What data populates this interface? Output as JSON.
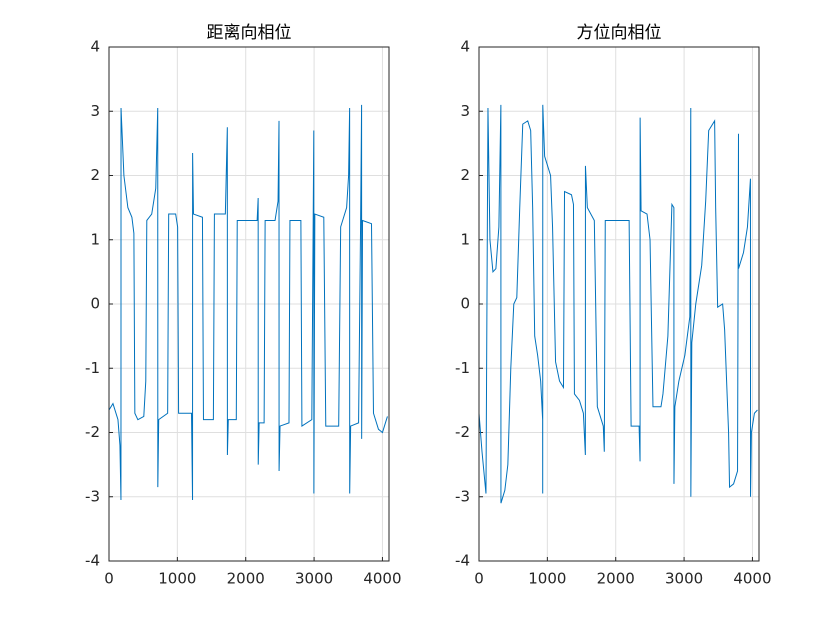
{
  "chart_data": [
    {
      "type": "line",
      "title": "距离向相位",
      "color": "#0072BD",
      "grid": true,
      "xlim": [
        0,
        4096
      ],
      "xticks": [
        0,
        1000,
        2000,
        3000,
        4000
      ],
      "ylim": [
        -4,
        4
      ],
      "yticks": [
        -4,
        -3,
        -2,
        -1,
        0,
        1,
        2,
        3,
        4
      ],
      "x": [
        0,
        58,
        131,
        160,
        175,
        176,
        218,
        276,
        335,
        364,
        378,
        422,
        509,
        538,
        553,
        625,
        684,
        713,
        714,
        727,
        858,
        873,
        975,
        1004,
        1018,
        1207,
        1222,
        1223,
        1236,
        1367,
        1382,
        1527,
        1542,
        1702,
        1731,
        1732,
        1745,
        1862,
        1876,
        2167,
        2182,
        2183,
        2196,
        2269,
        2284,
        2429,
        2473,
        2487,
        2488,
        2502,
        2633,
        2647,
        2807,
        2822,
        2967,
        2996,
        2997,
        3011,
        3142,
        3171,
        3360,
        3389,
        3476,
        3505,
        3520,
        3521,
        3535,
        3651,
        3680,
        3695,
        3696,
        3709,
        3840,
        3869,
        3942,
        4000,
        4073
      ],
      "values": [
        -1.65,
        -1.55,
        -1.8,
        -2.2,
        -3.05,
        3.05,
        2.0,
        1.5,
        1.35,
        1.1,
        -1.7,
        -1.8,
        -1.75,
        -1.2,
        1.3,
        1.4,
        1.8,
        3.05,
        -2.85,
        -1.8,
        -1.7,
        1.4,
        1.4,
        1.2,
        -1.7,
        -1.7,
        -3.05,
        2.35,
        1.4,
        1.35,
        -1.8,
        -1.8,
        1.4,
        1.4,
        2.75,
        -2.35,
        -1.8,
        -1.8,
        1.3,
        1.3,
        1.65,
        -2.5,
        -1.85,
        -1.85,
        1.3,
        1.3,
        1.6,
        2.85,
        -2.6,
        -1.9,
        -1.85,
        1.3,
        1.3,
        -1.9,
        -1.8,
        2.7,
        -2.95,
        1.4,
        1.35,
        -1.9,
        -1.9,
        1.2,
        1.5,
        2.0,
        3.05,
        -2.95,
        -1.9,
        -1.85,
        1.2,
        3.1,
        -2.1,
        1.3,
        1.25,
        -1.7,
        -1.95,
        -2.0,
        -1.75
      ]
    },
    {
      "type": "line",
      "title": "方位向相位",
      "color": "#0072BD",
      "grid": true,
      "xlim": [
        0,
        4096
      ],
      "xticks": [
        0,
        1000,
        2000,
        3000,
        4000
      ],
      "ylim": [
        -4,
        4
      ],
      "yticks": [
        -4,
        -3,
        -2,
        -1,
        0,
        1,
        2,
        3,
        4
      ],
      "x": [
        0,
        44,
        102,
        131,
        160,
        204,
        247,
        291,
        320,
        321,
        378,
        422,
        465,
        509,
        553,
        596,
        640,
        713,
        756,
        785,
        815,
        858,
        902,
        931,
        932,
        933,
        960,
        1047,
        1076,
        1120,
        1178,
        1236,
        1251,
        1353,
        1382,
        1396,
        1469,
        1527,
        1556,
        1557,
        1585,
        1687,
        1731,
        1818,
        1833,
        1847,
        2196,
        2225,
        2342,
        2356,
        2357,
        2371,
        2458,
        2502,
        2545,
        2662,
        2691,
        2763,
        2822,
        2851,
        2852,
        2865,
        2924,
        3011,
        3084,
        3098,
        3099,
        3113,
        3171,
        3258,
        3316,
        3360,
        3447,
        3462,
        3491,
        3564,
        3593,
        3651,
        3665,
        3724,
        3782,
        3796,
        3797,
        3869,
        3927,
        3971,
        3972,
        3985,
        4029,
        4073
      ],
      "values": [
        -1.7,
        -2.3,
        -2.95,
        3.05,
        1.0,
        0.5,
        0.55,
        1.2,
        3.1,
        -3.1,
        -2.9,
        -2.5,
        -1.0,
        0.0,
        0.1,
        1.5,
        2.8,
        2.85,
        2.7,
        1.5,
        -0.5,
        -0.8,
        -1.2,
        -1.8,
        -2.95,
        3.1,
        2.3,
        2.0,
        1.2,
        -0.9,
        -1.2,
        -1.3,
        1.75,
        1.7,
        1.55,
        -1.4,
        -1.5,
        -1.7,
        -2.35,
        2.15,
        1.5,
        1.3,
        -1.6,
        -1.9,
        -2.3,
        1.3,
        1.3,
        -1.9,
        -1.9,
        -2.45,
        2.9,
        1.45,
        1.4,
        1.0,
        -1.6,
        -1.6,
        -1.4,
        -0.5,
        1.55,
        1.5,
        -2.8,
        -1.6,
        -1.2,
        -0.8,
        -0.2,
        3.05,
        -3.0,
        -0.6,
        0.0,
        0.6,
        1.6,
        2.7,
        2.85,
        1.5,
        -0.05,
        0.0,
        -0.4,
        -2.0,
        -2.85,
        -2.8,
        -2.6,
        2.65,
        0.55,
        0.8,
        1.2,
        1.95,
        -3.0,
        -2.0,
        -1.7,
        -1.65
      ]
    }
  ]
}
